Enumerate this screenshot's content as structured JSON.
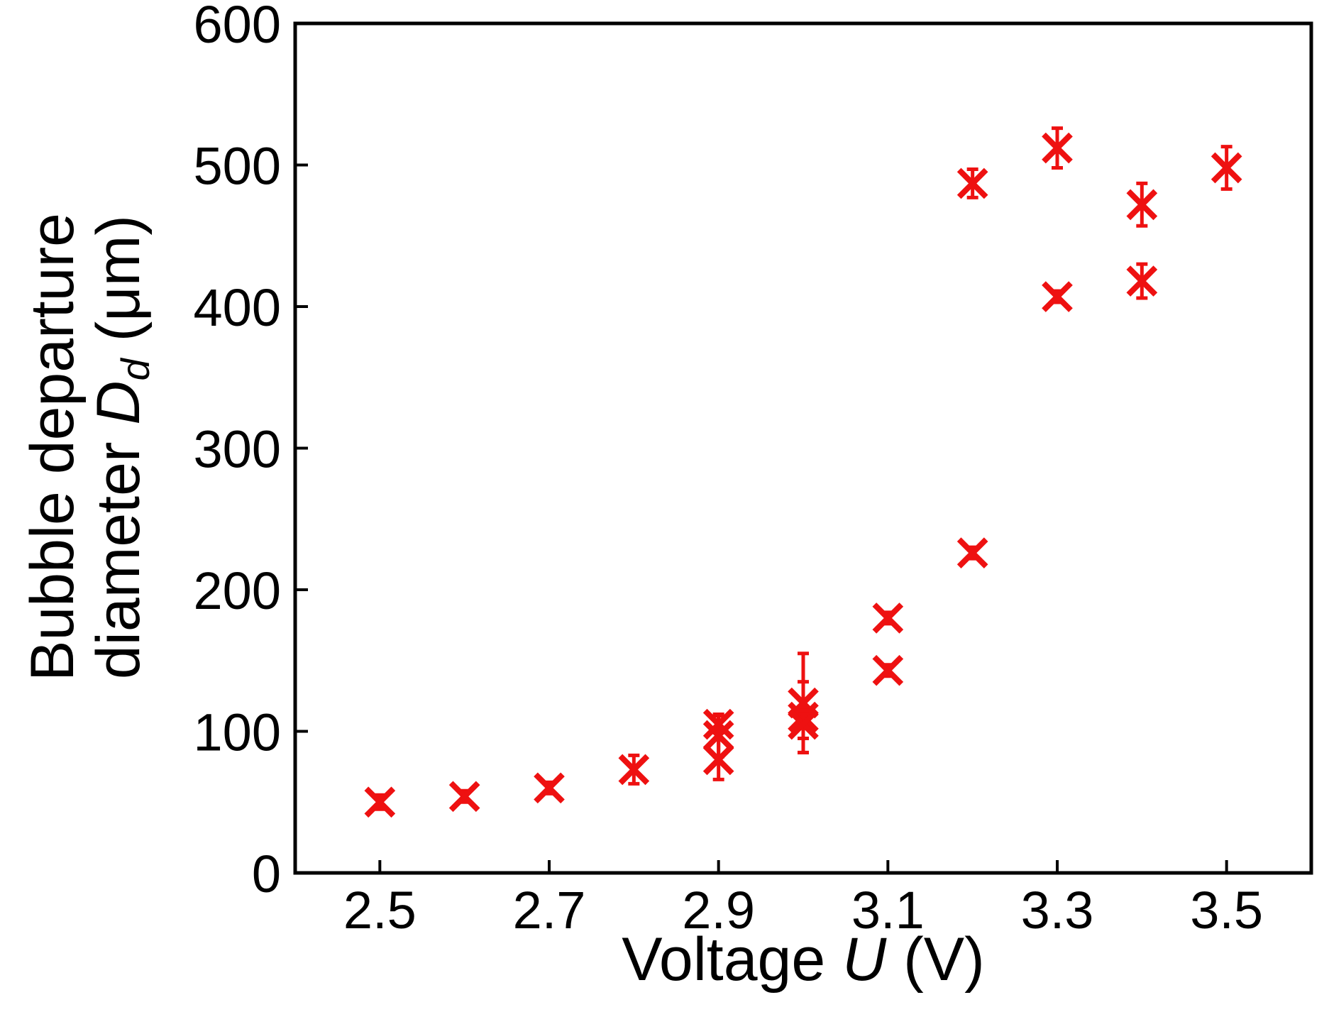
{
  "chart_data": {
    "type": "scatter",
    "title": "",
    "xlabel": {
      "prefix": "Voltage ",
      "symbol": "U",
      "suffix": " (V)"
    },
    "ylabel": {
      "line1": "Bubble departure",
      "line2_prefix": "diameter ",
      "symbol": "D",
      "subscript": "d",
      "line2_suffix": " (μm)"
    },
    "xlim": [
      2.4,
      3.6
    ],
    "ylim": [
      0,
      600
    ],
    "xticks": [
      2.5,
      2.7,
      2.9,
      3.1,
      3.3,
      3.5
    ],
    "xtick_labels": [
      "2.5",
      "2.7",
      "2.9",
      "3.1",
      "3.3",
      "3.5"
    ],
    "yticks": [
      0,
      100,
      200,
      300,
      400,
      500,
      600
    ],
    "ytick_labels": [
      "0",
      "100",
      "200",
      "300",
      "400",
      "500",
      "600"
    ],
    "grid": false,
    "marker": "x",
    "color": "#ee1111",
    "series": [
      {
        "name": "Bubble departure diameter",
        "points": [
          {
            "x": 2.5,
            "y": 50,
            "err": 5
          },
          {
            "x": 2.6,
            "y": 54,
            "err": 4
          },
          {
            "x": 2.7,
            "y": 60,
            "err": 4
          },
          {
            "x": 2.8,
            "y": 73,
            "err": 10
          },
          {
            "x": 2.9,
            "y": 97,
            "err": 15
          },
          {
            "x": 2.9,
            "y": 80,
            "err": 14
          },
          {
            "x": 2.9,
            "y": 105,
            "err": 6
          },
          {
            "x": 3.0,
            "y": 120,
            "err": 35
          },
          {
            "x": 3.0,
            "y": 110,
            "err": 25
          },
          {
            "x": 3.0,
            "y": 105,
            "err": 10
          },
          {
            "x": 3.1,
            "y": 180,
            "err": 4
          },
          {
            "x": 3.1,
            "y": 143,
            "err": 4
          },
          {
            "x": 3.2,
            "y": 226,
            "err": 4
          },
          {
            "x": 3.2,
            "y": 487,
            "err": 10
          },
          {
            "x": 3.3,
            "y": 512,
            "err": 14
          },
          {
            "x": 3.3,
            "y": 407,
            "err": 4
          },
          {
            "x": 3.4,
            "y": 472,
            "err": 15
          },
          {
            "x": 3.4,
            "y": 418,
            "err": 12
          },
          {
            "x": 3.5,
            "y": 498,
            "err": 15
          }
        ]
      }
    ]
  }
}
